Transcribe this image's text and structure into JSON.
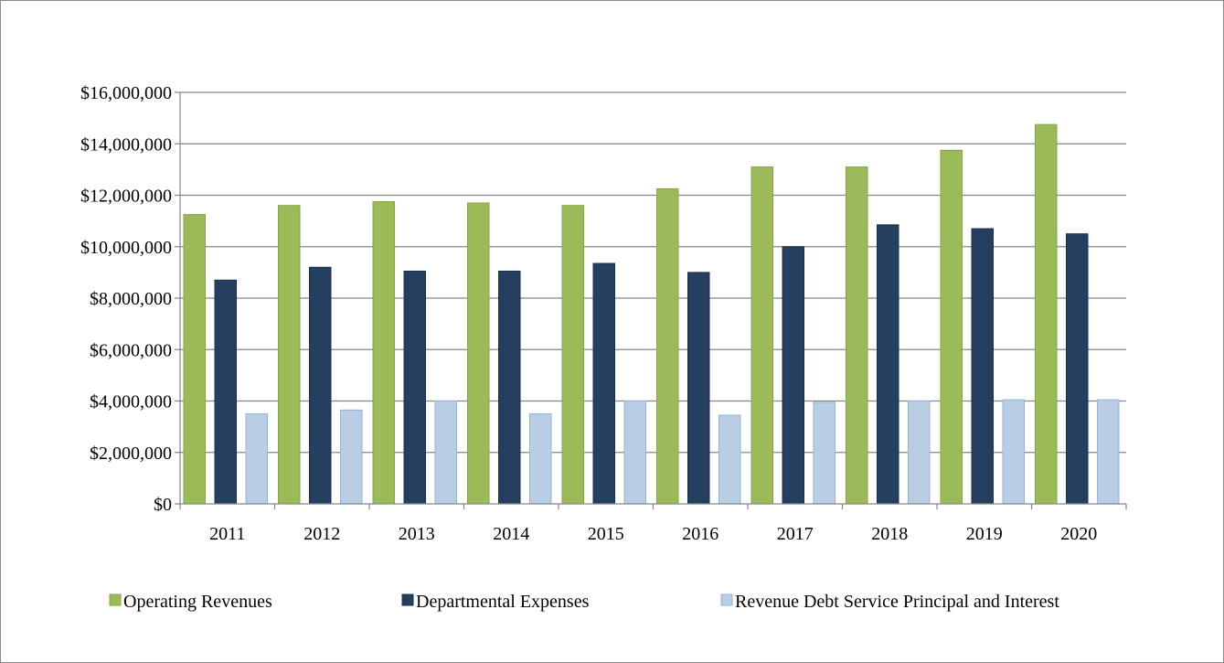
{
  "chart_data": {
    "type": "bar",
    "title": "",
    "xlabel": "",
    "ylabel": "",
    "categories": [
      "2011",
      "2012",
      "2013",
      "2014",
      "2015",
      "2016",
      "2017",
      "2018",
      "2019",
      "2020"
    ],
    "series": [
      {
        "name": "Operating Revenues",
        "color": "#9bbb59",
        "values": [
          11250000,
          11600000,
          11750000,
          11700000,
          11600000,
          12250000,
          13100000,
          13100000,
          13750000,
          14750000
        ]
      },
      {
        "name": "Departmental Expenses",
        "color": "#243f60",
        "values": [
          8700000,
          9200000,
          9050000,
          9050000,
          9350000,
          9000000,
          10000000,
          10850000,
          10700000,
          10500000
        ]
      },
      {
        "name": "Revenue Debt Service Principal and Interest",
        "color": "#b9cde5",
        "values": [
          3500000,
          3650000,
          4000000,
          3500000,
          4000000,
          3450000,
          3950000,
          4000000,
          4050000,
          4050000
        ]
      }
    ],
    "ylim": [
      0,
      16000000
    ],
    "yticks": [
      0,
      2000000,
      4000000,
      6000000,
      8000000,
      10000000,
      12000000,
      14000000,
      16000000
    ],
    "ytick_labels": [
      "$0",
      "$2,000,000",
      "$4,000,000",
      "$6,000,000",
      "$8,000,000",
      "$10,000,000",
      "$12,000,000",
      "$14,000,000",
      "$16,000,000"
    ],
    "grid": true,
    "legend_position": "bottom"
  }
}
